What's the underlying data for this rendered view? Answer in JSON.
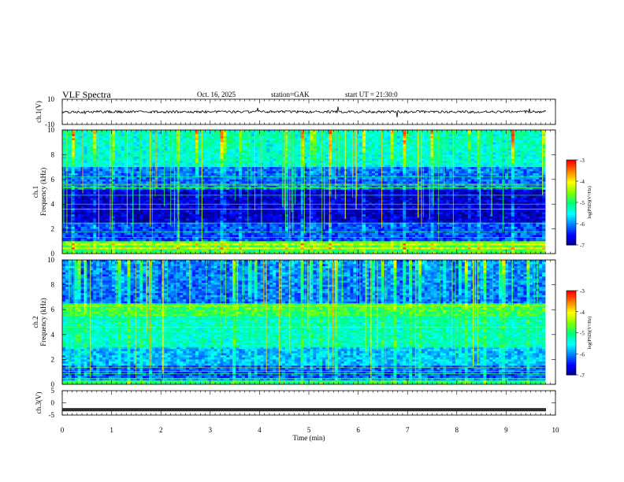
{
  "header": {
    "title": "VLF Spectra",
    "date": "Oct. 16, 2025",
    "station": "station=GAK",
    "start": "start UT =  21:30:0"
  },
  "chart_data": [
    {
      "type": "line",
      "panel": "ch1-waveform",
      "ylabel": "ch.1(V)",
      "ylim": [
        -10,
        10
      ],
      "yticks": [
        "10",
        "-10"
      ],
      "xlim": [
        0,
        10
      ],
      "description_values": {
        "baseline_v": 0,
        "noise_amplitude_v": 1.5
      }
    },
    {
      "type": "heatmap",
      "panel": "ch1-spectrogram",
      "ylabel": "ch.1 Frequency (kHz)",
      "ylim": [
        0,
        10
      ],
      "yticks": [
        "0",
        "2",
        "4",
        "6",
        "8",
        "10"
      ],
      "xlim": [
        0,
        9.8
      ],
      "colorbar": {
        "label": "log(PSD)(V²/Hz)",
        "range": [
          -7,
          -3
        ],
        "ticks": [
          "-3",
          "-4",
          "-5",
          "-6",
          "-7"
        ]
      }
    },
    {
      "type": "heatmap",
      "panel": "ch2-spectrogram",
      "ylabel": "ch.2 Frequency (kHz)",
      "ylim": [
        0,
        10
      ],
      "yticks": [
        "0",
        "2",
        "4",
        "6",
        "8",
        "10"
      ],
      "xlim": [
        0,
        9.8
      ],
      "colorbar": {
        "label": "log(PSD)(V²/Hz)",
        "range": [
          -7,
          -3
        ],
        "ticks": [
          "-3",
          "-4",
          "-5",
          "-6",
          "-7"
        ]
      }
    },
    {
      "type": "line",
      "panel": "ch3-waveform",
      "ylabel": "ch.3(V)",
      "ylim": [
        -5,
        5
      ],
      "yticks": [
        "5",
        "0",
        "-5"
      ],
      "xlim": [
        0,
        10
      ],
      "description_values": {
        "baseline_v": -2.8
      }
    }
  ],
  "xaxis": {
    "label": "Time (min)",
    "ticks": [
      "0",
      "1",
      "2",
      "3",
      "4",
      "5",
      "6",
      "7",
      "8",
      "9",
      "10"
    ]
  },
  "colors": {
    "colormap": [
      "#000080",
      "#0000ff",
      "#0080ff",
      "#00ffff",
      "#00ff80",
      "#80ff00",
      "#ffff00",
      "#ff8000",
      "#ff0000"
    ]
  }
}
